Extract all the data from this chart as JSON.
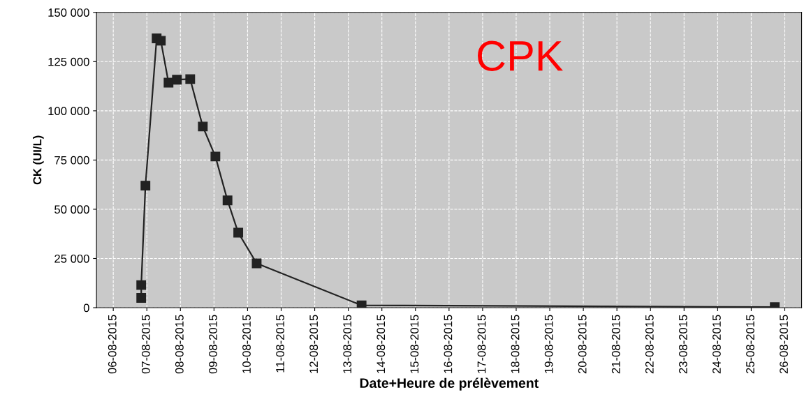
{
  "chart_data": {
    "type": "line",
    "xlabel": "Date+Heure de prélèvement",
    "ylabel": "CK (UI/L)",
    "annotations": [
      "CPK"
    ],
    "x": [
      "2015-08-06T20:00",
      "2015-08-06T20:00",
      "2015-08-06T23:00",
      "2015-08-07T07:00",
      "2015-08-07T10:00",
      "2015-08-07T15:30",
      "2015-08-07T21:30",
      "2015-08-08T07:00",
      "2015-08-08T16:00",
      "2015-08-09T01:00",
      "2015-08-09T09:40",
      "2015-08-09T17:20",
      "2015-08-10T06:30",
      "2015-08-13T09:30",
      "2015-08-25T16:50"
    ],
    "series": [
      {
        "color": "#222222",
        "values": [
          5000,
          11500,
          62000,
          136800,
          135600,
          114300,
          115800,
          116100,
          92000,
          76800,
          54500,
          38100,
          22500,
          1200,
          300
        ]
      }
    ],
    "marker": "square",
    "line_style": "solid",
    "grid": true,
    "legend": false,
    "xlim": [
      "2015-08-05T12:00",
      "2015-08-26T12:00"
    ],
    "xticks": [
      {
        "value": "2015-08-06",
        "label": "06-08-2015"
      },
      {
        "value": "2015-08-07",
        "label": "07-08-2015"
      },
      {
        "value": "2015-08-08",
        "label": "08-08-2015"
      },
      {
        "value": "2015-08-09",
        "label": "09-08-2015"
      },
      {
        "value": "2015-08-10",
        "label": "10-08-2015"
      },
      {
        "value": "2015-08-11",
        "label": "11-08-2015"
      },
      {
        "value": "2015-08-12",
        "label": "12-08-2015"
      },
      {
        "value": "2015-08-13",
        "label": "13-08-2015"
      },
      {
        "value": "2015-08-14",
        "label": "14-08-2015"
      },
      {
        "value": "2015-08-15",
        "label": "15-08-2015"
      },
      {
        "value": "2015-08-16",
        "label": "16-08-2015"
      },
      {
        "value": "2015-08-17",
        "label": "17-08-2015"
      },
      {
        "value": "2015-08-18",
        "label": "18-08-2015"
      },
      {
        "value": "2015-08-19",
        "label": "19-08-2015"
      },
      {
        "value": "2015-08-20",
        "label": "20-08-2015"
      },
      {
        "value": "2015-08-21",
        "label": "21-08-2015"
      },
      {
        "value": "2015-08-22",
        "label": "22-08-2015"
      },
      {
        "value": "2015-08-23",
        "label": "23-08-2015"
      },
      {
        "value": "2015-08-24",
        "label": "24-08-2015"
      },
      {
        "value": "2015-08-25",
        "label": "25-08-2015"
      },
      {
        "value": "2015-08-26",
        "label": "26-08-2015"
      }
    ],
    "ylim": [
      0,
      150000
    ],
    "yticks": [
      {
        "value": 0,
        "label": "0"
      },
      {
        "value": 25000,
        "label": "25 000"
      },
      {
        "value": 50000,
        "label": "50 000"
      },
      {
        "value": 75000,
        "label": "75 000"
      },
      {
        "value": 100000,
        "label": "100 000"
      },
      {
        "value": 125000,
        "label": "125 000"
      },
      {
        "value": 150000,
        "label": "150 000"
      }
    ]
  }
}
